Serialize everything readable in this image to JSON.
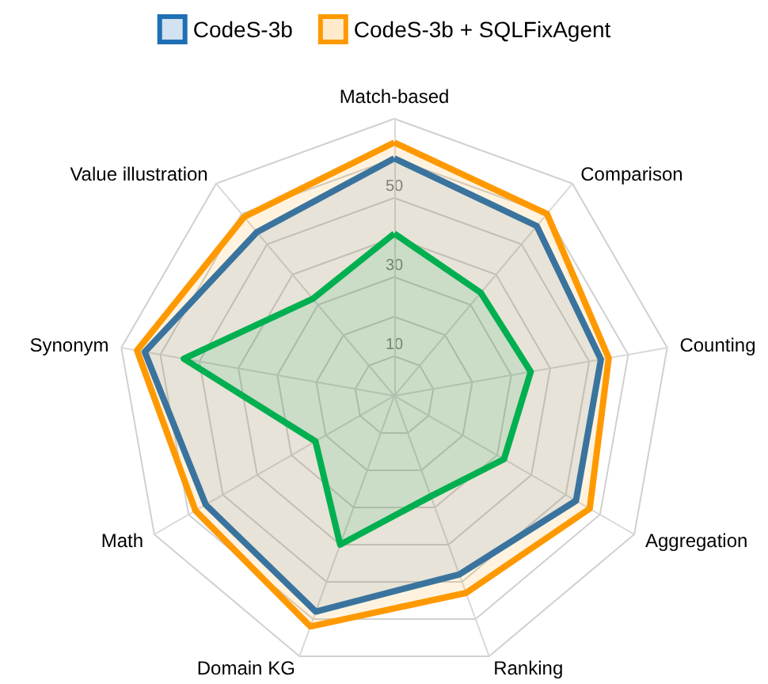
{
  "chart_data": {
    "type": "radar",
    "categories": [
      "Match-based",
      "Comparison",
      "Counting",
      "Aggregation",
      "Ranking",
      "Domain KG",
      "Math",
      "Synonym",
      "Value illustration"
    ],
    "series": [
      {
        "name": "CodeS-3b",
        "color": "#1f6fb4",
        "values": [
          60,
          56,
          53,
          53,
          48,
          58,
          55,
          64,
          54
        ]
      },
      {
        "name": "CodeS-3b + SQLFixAgent",
        "color": "#ff9900",
        "values": [
          64,
          60,
          55,
          57,
          53,
          62,
          58,
          66,
          59
        ]
      },
      {
        "color": "#00b050",
        "values": [
          41,
          34,
          35,
          32,
          27,
          40,
          23,
          54,
          32
        ]
      }
    ],
    "ylim": [
      0,
      70
    ],
    "yticks": [
      10,
      30,
      50
    ],
    "legend": "top",
    "grid": true
  }
}
